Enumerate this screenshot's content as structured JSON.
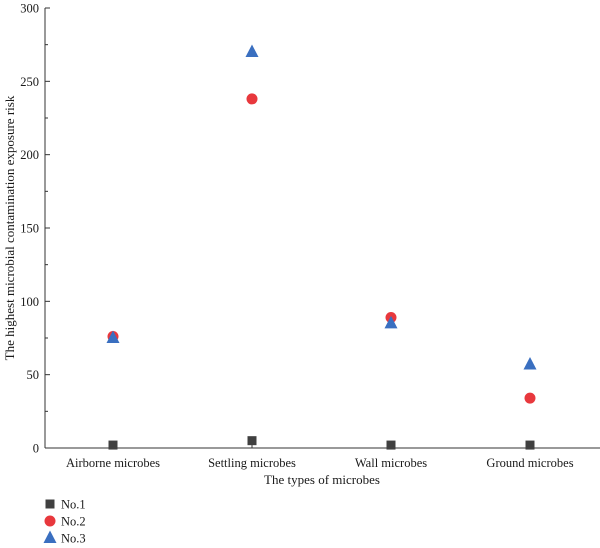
{
  "chart_data": {
    "type": "scatter",
    "title": "",
    "xlabel": "The types of microbes",
    "ylabel": "The highest microbial contamination exposure risk",
    "categories": [
      "Airborne microbes",
      "Settling microbes",
      "Wall microbes",
      "Ground microbes"
    ],
    "ylim": [
      0,
      300
    ],
    "yticks": [
      0,
      50,
      100,
      150,
      200,
      250,
      300
    ],
    "grid": false,
    "legend_position": "bottom-left",
    "series": [
      {
        "name": "No.1",
        "marker": "square",
        "color": "#404040",
        "values": [
          2,
          5,
          2,
          2
        ]
      },
      {
        "name": "No.2",
        "marker": "circle",
        "color": "#e8383d",
        "values": [
          76,
          238,
          89,
          34
        ]
      },
      {
        "name": "No.3",
        "marker": "triangle",
        "color": "#3a6fc0",
        "values": [
          75,
          270,
          85,
          57
        ]
      }
    ]
  }
}
